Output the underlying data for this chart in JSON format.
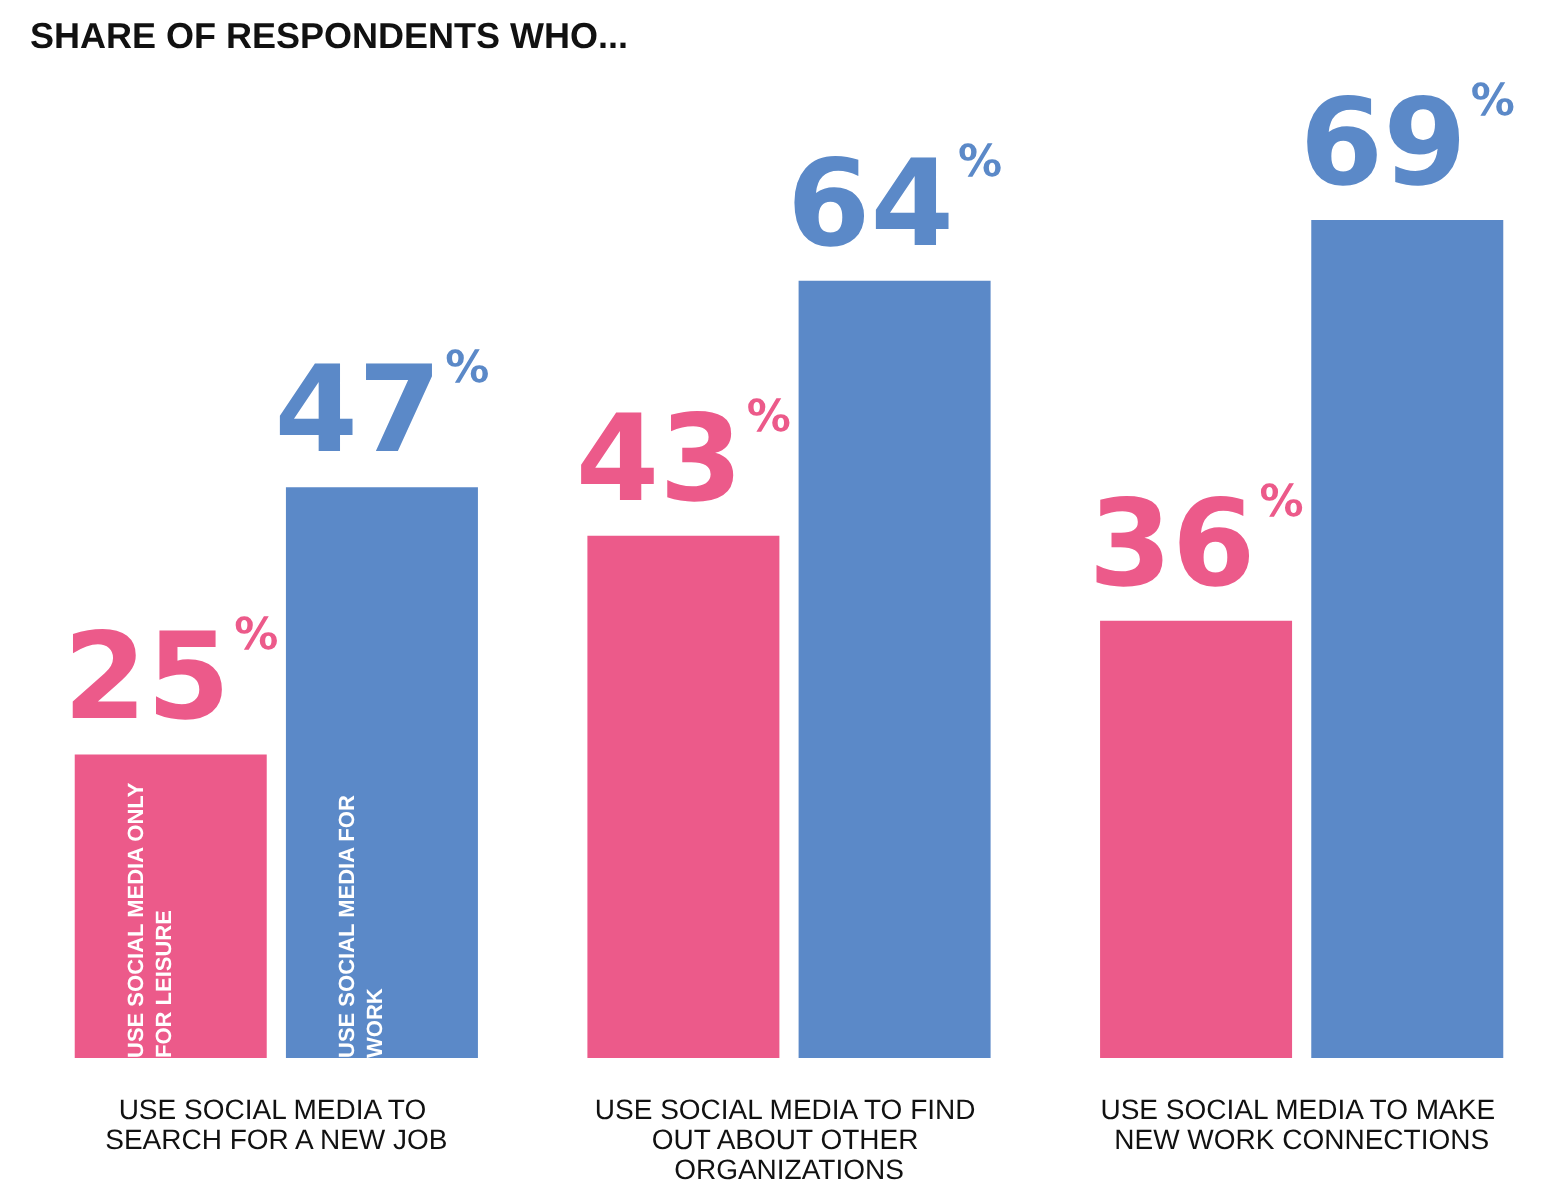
{
  "chart_data": {
    "type": "bar",
    "title": "SHARE OF RESPONDENTS WHO...",
    "categories": [
      "USE SOCIAL MEDIA TO SEARCH FOR A NEW JOB",
      "USE SOCIAL MEDIA TO FIND OUT ABOUT OTHER ORGANIZATIONS",
      "USE SOCIAL MEDIA TO MAKE NEW WORK CONNECTIONS"
    ],
    "series": [
      {
        "name": "USE SOCIAL MEDIA ONLY FOR LEISURE",
        "color": "#ec5a8a",
        "values": [
          25,
          43,
          36
        ],
        "value_labels": [
          "25%",
          "43%",
          "36%"
        ]
      },
      {
        "name": "USE SOCIAL MEDIA FOR WORK",
        "color": "#5b89c8",
        "values": [
          47,
          64,
          69
        ],
        "value_labels": [
          "47%",
          "64%",
          "69%"
        ]
      }
    ],
    "legend": false,
    "grid": false
  }
}
